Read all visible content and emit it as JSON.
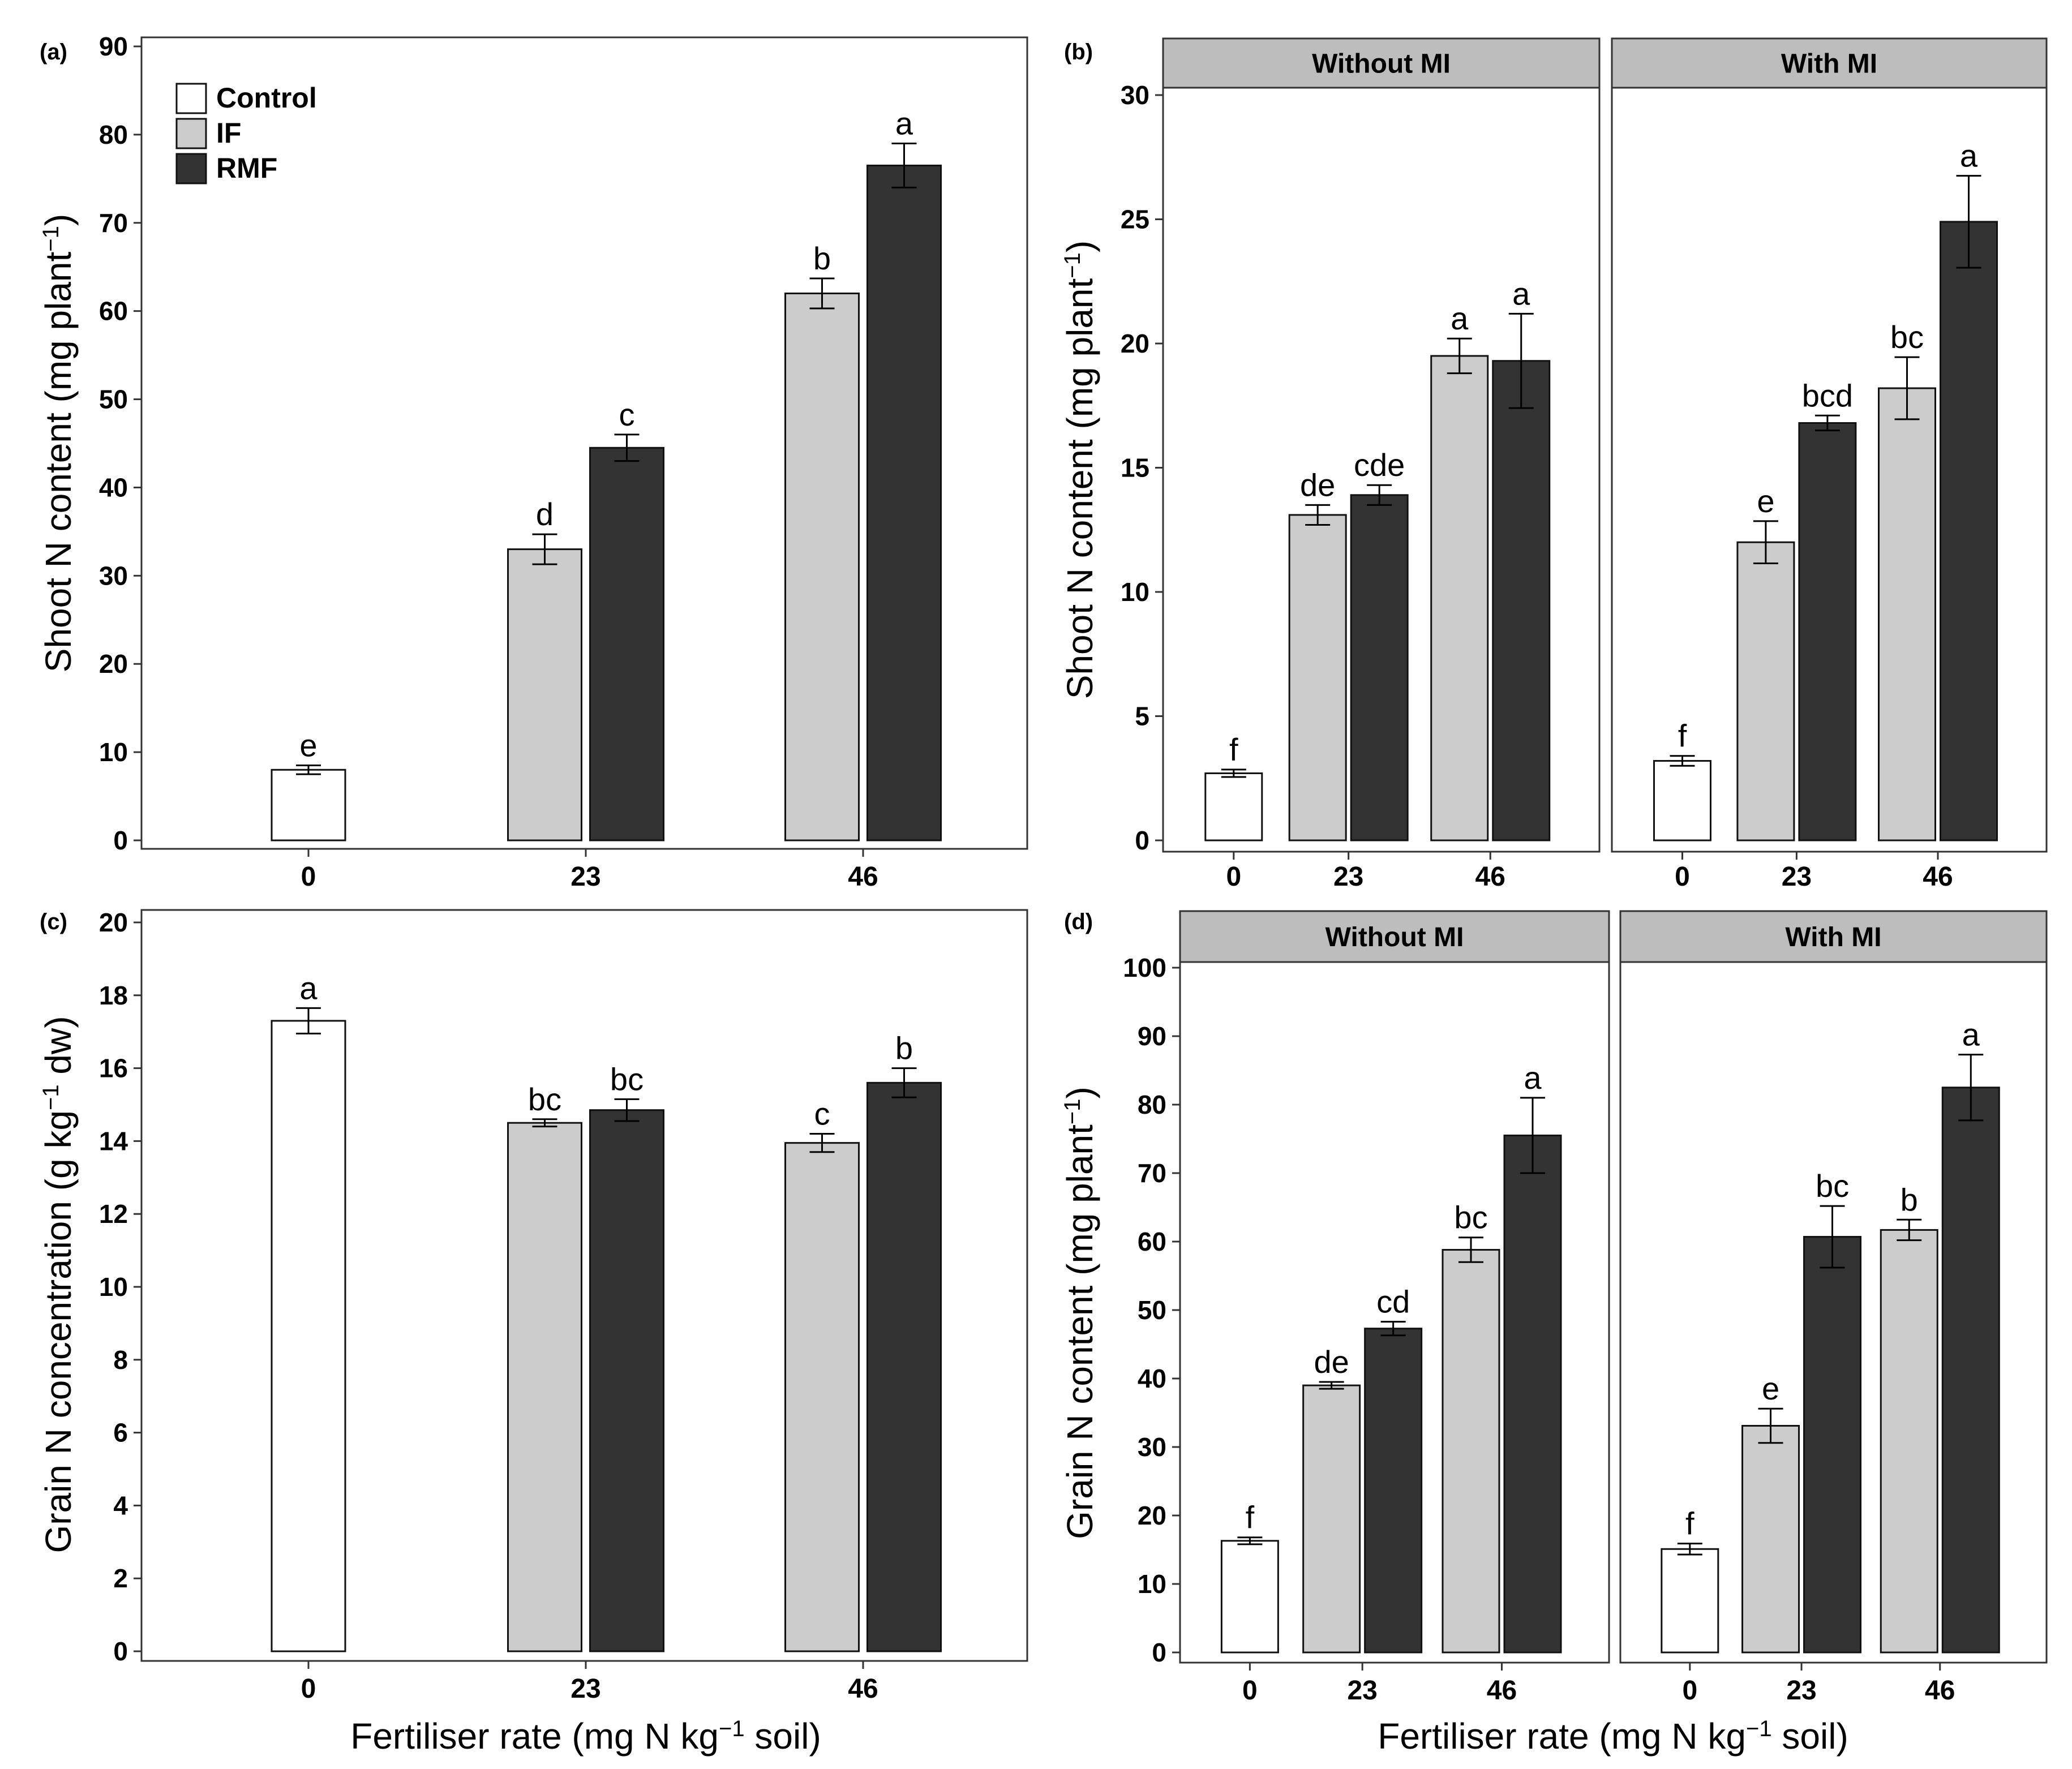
{
  "colors": {
    "control": "#ffffff",
    "IF": "#cccccc",
    "RMF": "#333333",
    "strip": "#bdbdbd",
    "axis": "#333333"
  },
  "legend": {
    "entries": [
      "Control",
      "IF",
      "RMF"
    ]
  },
  "x_label_prefix": "Fertiliser rate  (mg N kg",
  "x_label_exp": "−1",
  "x_label_suffix": " soil)",
  "chart_data": [
    {
      "panel": "(a)",
      "type": "bar",
      "title": "",
      "ylabel_prefix": "Shoot N content  (mg plant",
      "ylabel_exp": "−1",
      "ylabel_suffix": ")",
      "xlabel": "",
      "ylim": [
        0,
        90
      ],
      "yticks": [
        0,
        10,
        20,
        30,
        40,
        50,
        60,
        70,
        80,
        90
      ],
      "legend_position": "top-left",
      "facets": [
        {
          "strip": "",
          "groups": [
            {
              "category": "0",
              "bars": [
                {
                  "series": "Control",
                  "value": 8.0,
                  "error": 0.5,
                  "letter": "e"
                }
              ]
            },
            {
              "category": "23",
              "bars": [
                {
                  "series": "IF",
                  "value": 33.0,
                  "error": 1.7,
                  "letter": "d"
                },
                {
                  "series": "RMF",
                  "value": 44.5,
                  "error": 1.5,
                  "letter": "c"
                }
              ]
            },
            {
              "category": "46",
              "bars": [
                {
                  "series": "IF",
                  "value": 62.0,
                  "error": 1.7,
                  "letter": "b"
                },
                {
                  "series": "RMF",
                  "value": 76.5,
                  "error": 2.5,
                  "letter": "a"
                }
              ]
            }
          ]
        }
      ]
    },
    {
      "panel": "(b)",
      "type": "bar",
      "title": "",
      "ylabel_prefix": "Shoot N content  (mg plant",
      "ylabel_exp": "−1",
      "ylabel_suffix": ")",
      "xlabel": "",
      "ylim": [
        0,
        30
      ],
      "yticks": [
        0,
        5,
        10,
        15,
        20,
        25,
        30
      ],
      "facets": [
        {
          "strip": "Without MI",
          "groups": [
            {
              "category": "0",
              "bars": [
                {
                  "series": "Control",
                  "value": 2.7,
                  "error": 0.15,
                  "letter": "f"
                }
              ]
            },
            {
              "category": "23",
              "bars": [
                {
                  "series": "IF",
                  "value": 13.1,
                  "error": 0.4,
                  "letter": "de"
                },
                {
                  "series": "RMF",
                  "value": 13.9,
                  "error": 0.4,
                  "letter": "cde"
                }
              ]
            },
            {
              "category": "46",
              "bars": [
                {
                  "series": "IF",
                  "value": 19.5,
                  "error": 0.7,
                  "letter": "a"
                },
                {
                  "series": "RMF",
                  "value": 19.3,
                  "error": 1.9,
                  "letter": "a"
                }
              ]
            }
          ]
        },
        {
          "strip": "With MI",
          "groups": [
            {
              "category": "0",
              "bars": [
                {
                  "series": "Control",
                  "value": 3.2,
                  "error": 0.2,
                  "letter": "f"
                }
              ]
            },
            {
              "category": "23",
              "bars": [
                {
                  "series": "IF",
                  "value": 12.0,
                  "error": 0.85,
                  "letter": "e"
                },
                {
                  "series": "RMF",
                  "value": 16.8,
                  "error": 0.3,
                  "letter": "bcd"
                }
              ]
            },
            {
              "category": "46",
              "bars": [
                {
                  "series": "IF",
                  "value": 18.2,
                  "error": 1.25,
                  "letter": "bc"
                },
                {
                  "series": "RMF",
                  "value": 24.9,
                  "error": 1.85,
                  "letter": "a"
                }
              ]
            }
          ]
        }
      ]
    },
    {
      "panel": "(c)",
      "type": "bar",
      "title": "",
      "ylabel_prefix": "Grain N concentration  (g kg",
      "ylabel_exp": "−1",
      "ylabel_suffix": " dw)",
      "xlabel": "Fertiliser rate  (mg N kg−1 soil)",
      "ylim": [
        0,
        20
      ],
      "yticks": [
        0,
        2,
        4,
        6,
        8,
        10,
        12,
        14,
        16,
        18,
        20
      ],
      "facets": [
        {
          "strip": "",
          "groups": [
            {
              "category": "0",
              "bars": [
                {
                  "series": "Control",
                  "value": 17.3,
                  "error": 0.35,
                  "letter": "a"
                }
              ]
            },
            {
              "category": "23",
              "bars": [
                {
                  "series": "IF",
                  "value": 14.5,
                  "error": 0.1,
                  "letter": "bc"
                },
                {
                  "series": "RMF",
                  "value": 14.85,
                  "error": 0.3,
                  "letter": "bc"
                }
              ]
            },
            {
              "category": "46",
              "bars": [
                {
                  "series": "IF",
                  "value": 13.95,
                  "error": 0.25,
                  "letter": "c"
                },
                {
                  "series": "RMF",
                  "value": 15.6,
                  "error": 0.4,
                  "letter": "b"
                }
              ]
            }
          ]
        }
      ]
    },
    {
      "panel": "(d)",
      "type": "bar",
      "title": "",
      "ylabel_prefix": "Grain N content  (mg plant",
      "ylabel_exp": "−1",
      "ylabel_suffix": ")",
      "xlabel": "Fertiliser rate  (mg N kg−1 soil)",
      "ylim": [
        0,
        100
      ],
      "yticks": [
        0,
        10,
        20,
        30,
        40,
        50,
        60,
        70,
        80,
        90,
        100
      ],
      "facets": [
        {
          "strip": "Without MI",
          "groups": [
            {
              "category": "0",
              "bars": [
                {
                  "series": "Control",
                  "value": 16.3,
                  "error": 0.5,
                  "letter": "f"
                }
              ]
            },
            {
              "category": "23",
              "bars": [
                {
                  "series": "IF",
                  "value": 39.0,
                  "error": 0.5,
                  "letter": "de"
                },
                {
                  "series": "RMF",
                  "value": 47.3,
                  "error": 1.0,
                  "letter": "cd"
                }
              ]
            },
            {
              "category": "46",
              "bars": [
                {
                  "series": "IF",
                  "value": 58.8,
                  "error": 1.8,
                  "letter": "bc"
                },
                {
                  "series": "RMF",
                  "value": 75.5,
                  "error": 5.5,
                  "letter": "a"
                }
              ]
            }
          ]
        },
        {
          "strip": "With MI",
          "groups": [
            {
              "category": "0",
              "bars": [
                {
                  "series": "Control",
                  "value": 15.1,
                  "error": 0.8,
                  "letter": "f"
                }
              ]
            },
            {
              "category": "23",
              "bars": [
                {
                  "series": "IF",
                  "value": 33.1,
                  "error": 2.5,
                  "letter": "e"
                },
                {
                  "series": "RMF",
                  "value": 60.7,
                  "error": 4.5,
                  "letter": "bc"
                }
              ]
            },
            {
              "category": "46",
              "bars": [
                {
                  "series": "IF",
                  "value": 61.7,
                  "error": 1.5,
                  "letter": "b"
                },
                {
                  "series": "RMF",
                  "value": 82.5,
                  "error": 4.8,
                  "letter": "a"
                }
              ]
            }
          ]
        }
      ]
    }
  ]
}
